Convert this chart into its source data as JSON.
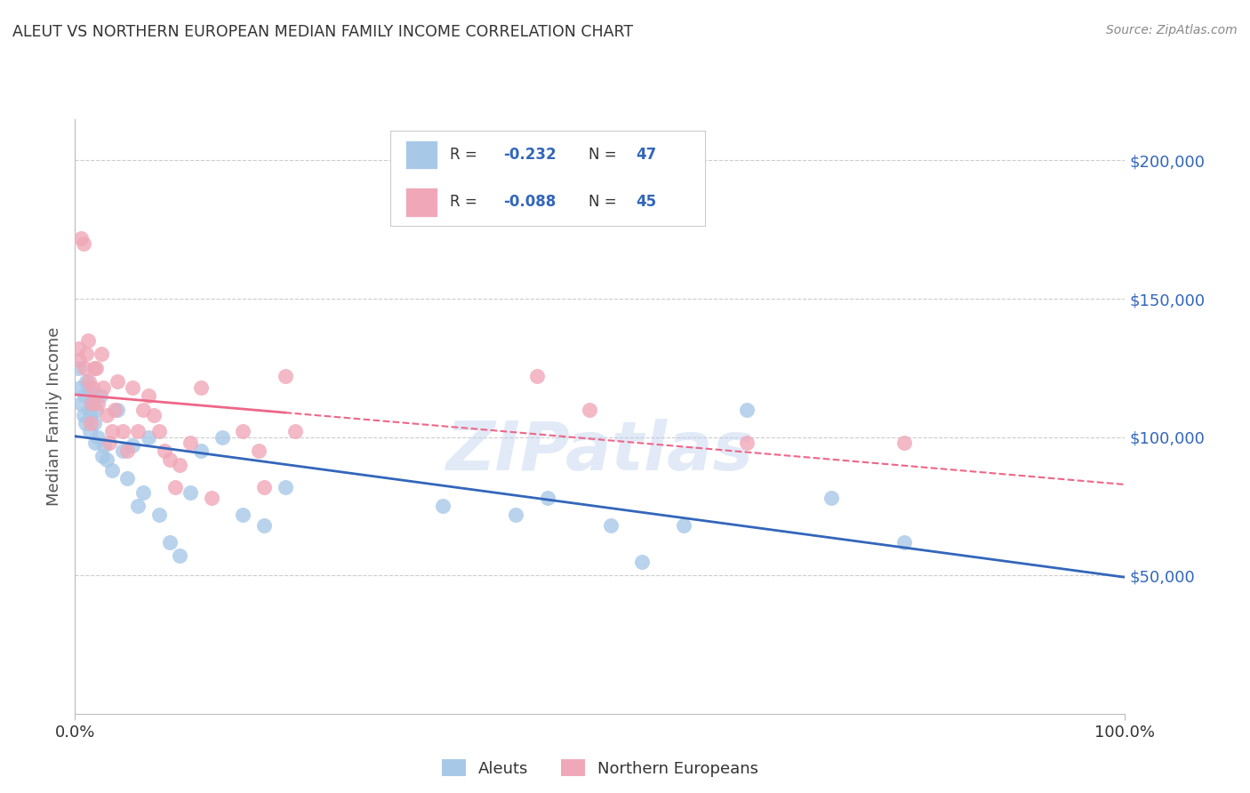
{
  "title": "ALEUT VS NORTHERN EUROPEAN MEDIAN FAMILY INCOME CORRELATION CHART",
  "source": "Source: ZipAtlas.com",
  "ylabel": "Median Family Income",
  "ymin": 0,
  "ymax": 215000,
  "xmin": 0.0,
  "xmax": 1.0,
  "aleuts_color": "#A8C8E8",
  "northern_color": "#F0A8B8",
  "aleuts_line_color": "#3366BB",
  "northern_line_color": "#EE6688",
  "watermark": "ZIPatlas",
  "aleuts_x": [
    0.003,
    0.005,
    0.006,
    0.008,
    0.009,
    0.01,
    0.011,
    0.012,
    0.013,
    0.014,
    0.015,
    0.016,
    0.017,
    0.018,
    0.019,
    0.02,
    0.022,
    0.024,
    0.026,
    0.028,
    0.03,
    0.035,
    0.04,
    0.045,
    0.05,
    0.055,
    0.06,
    0.065,
    0.07,
    0.08,
    0.09,
    0.1,
    0.11,
    0.12,
    0.14,
    0.16,
    0.18,
    0.2,
    0.35,
    0.42,
    0.45,
    0.51,
    0.54,
    0.58,
    0.64,
    0.72,
    0.79
  ],
  "aleuts_y": [
    125000,
    118000,
    112000,
    108000,
    115000,
    105000,
    120000,
    118000,
    110000,
    102000,
    108000,
    115000,
    112000,
    105000,
    98000,
    110000,
    100000,
    115000,
    93000,
    97000,
    92000,
    88000,
    110000,
    95000,
    85000,
    97000,
    75000,
    80000,
    100000,
    72000,
    62000,
    57000,
    80000,
    95000,
    100000,
    72000,
    68000,
    82000,
    75000,
    72000,
    78000,
    68000,
    55000,
    68000,
    110000,
    78000,
    62000
  ],
  "northern_x": [
    0.003,
    0.004,
    0.006,
    0.008,
    0.009,
    0.011,
    0.012,
    0.013,
    0.015,
    0.016,
    0.017,
    0.018,
    0.02,
    0.022,
    0.025,
    0.027,
    0.03,
    0.033,
    0.035,
    0.038,
    0.04,
    0.045,
    0.05,
    0.055,
    0.06,
    0.065,
    0.07,
    0.075,
    0.08,
    0.085,
    0.09,
    0.095,
    0.1,
    0.11,
    0.12,
    0.13,
    0.16,
    0.175,
    0.18,
    0.2,
    0.21,
    0.44,
    0.49,
    0.64,
    0.79
  ],
  "northern_y": [
    132000,
    128000,
    172000,
    170000,
    125000,
    130000,
    135000,
    120000,
    105000,
    112000,
    118000,
    125000,
    125000,
    112000,
    130000,
    118000,
    108000,
    98000,
    102000,
    110000,
    120000,
    102000,
    95000,
    118000,
    102000,
    110000,
    115000,
    108000,
    102000,
    95000,
    92000,
    82000,
    90000,
    98000,
    118000,
    78000,
    102000,
    95000,
    82000,
    122000,
    102000,
    122000,
    110000,
    98000,
    98000
  ],
  "background_color": "#FFFFFF",
  "grid_color": "#CCCCCC",
  "title_color": "#333333",
  "axis_label_color": "#555555",
  "ytick_color": "#3366BB",
  "legend_text_color": "#3366BB",
  "legend_label_color": "#333333"
}
